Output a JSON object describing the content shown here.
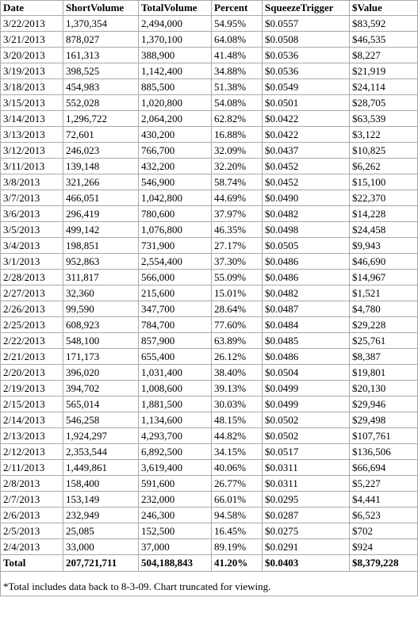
{
  "headers": [
    "Date",
    "ShortVolume",
    "TotalVolume",
    "Percent",
    "SqueezeTrigger",
    "$Value"
  ],
  "rows": [
    [
      "3/22/2013",
      "1,370,354",
      "2,494,000",
      "54.95%",
      "$0.0557",
      "$83,592"
    ],
    [
      "3/21/2013",
      "878,027",
      "1,370,100",
      "64.08%",
      "$0.0508",
      "$46,535"
    ],
    [
      "3/20/2013",
      "161,313",
      "388,900",
      "41.48%",
      "$0.0536",
      "$8,227"
    ],
    [
      "3/19/2013",
      "398,525",
      "1,142,400",
      "34.88%",
      "$0.0536",
      "$21,919"
    ],
    [
      "3/18/2013",
      "454,983",
      "885,500",
      "51.38%",
      "$0.0549",
      "$24,114"
    ],
    [
      "3/15/2013",
      "552,028",
      "1,020,800",
      "54.08%",
      "$0.0501",
      "$28,705"
    ],
    [
      "3/14/2013",
      "1,296,722",
      "2,064,200",
      "62.82%",
      "$0.0422",
      "$63,539"
    ],
    [
      "3/13/2013",
      "72,601",
      "430,200",
      "16.88%",
      "$0.0422",
      "$3,122"
    ],
    [
      "3/12/2013",
      "246,023",
      "766,700",
      "32.09%",
      "$0.0437",
      "$10,825"
    ],
    [
      "3/11/2013",
      "139,148",
      "432,200",
      "32.20%",
      "$0.0452",
      "$6,262"
    ],
    [
      "3/8/2013",
      "321,266",
      "546,900",
      "58.74%",
      "$0.0452",
      "$15,100"
    ],
    [
      "3/7/2013",
      "466,051",
      "1,042,800",
      "44.69%",
      "$0.0490",
      "$22,370"
    ],
    [
      "3/6/2013",
      "296,419",
      "780,600",
      "37.97%",
      "$0.0482",
      "$14,228"
    ],
    [
      "3/5/2013",
      "499,142",
      "1,076,800",
      "46.35%",
      "$0.0498",
      "$24,458"
    ],
    [
      "3/4/2013",
      "198,851",
      "731,900",
      "27.17%",
      "$0.0505",
      "$9,943"
    ],
    [
      "3/1/2013",
      "952,863",
      "2,554,400",
      "37.30%",
      "$0.0486",
      "$46,690"
    ],
    [
      "2/28/2013",
      "311,817",
      "566,000",
      "55.09%",
      "$0.0486",
      "$14,967"
    ],
    [
      "2/27/2013",
      "32,360",
      "215,600",
      "15.01%",
      "$0.0482",
      "$1,521"
    ],
    [
      "2/26/2013",
      "99,590",
      "347,700",
      "28.64%",
      "$0.0487",
      "$4,780"
    ],
    [
      "2/25/2013",
      "608,923",
      "784,700",
      "77.60%",
      "$0.0484",
      "$29,228"
    ],
    [
      "2/22/2013",
      "548,100",
      "857,900",
      "63.89%",
      "$0.0485",
      "$25,761"
    ],
    [
      "2/21/2013",
      "171,173",
      "655,400",
      "26.12%",
      "$0.0486",
      "$8,387"
    ],
    [
      "2/20/2013",
      "396,020",
      "1,031,400",
      "38.40%",
      "$0.0504",
      "$19,801"
    ],
    [
      "2/19/2013",
      "394,702",
      "1,008,600",
      "39.13%",
      "$0.0499",
      "$20,130"
    ],
    [
      "2/15/2013",
      "565,014",
      "1,881,500",
      "30.03%",
      "$0.0499",
      "$29,946"
    ],
    [
      "2/14/2013",
      "546,258",
      "1,134,600",
      "48.15%",
      "$0.0502",
      "$29,498"
    ],
    [
      "2/13/2013",
      "1,924,297",
      "4,293,700",
      "44.82%",
      "$0.0502",
      "$107,761"
    ],
    [
      "2/12/2013",
      "2,353,544",
      "6,892,500",
      "34.15%",
      "$0.0517",
      "$136,506"
    ],
    [
      "2/11/2013",
      "1,449,861",
      "3,619,400",
      "40.06%",
      "$0.0311",
      "$66,694"
    ],
    [
      "2/8/2013",
      "158,400",
      "591,600",
      "26.77%",
      "$0.0311",
      "$5,227"
    ],
    [
      "2/7/2013",
      "153,149",
      "232,000",
      "66.01%",
      "$0.0295",
      "$4,441"
    ],
    [
      "2/6/2013",
      "232,949",
      "246,300",
      "94.58%",
      "$0.0287",
      "$6,523"
    ],
    [
      "2/5/2013",
      "25,085",
      "152,500",
      "16.45%",
      "$0.0275",
      "$702"
    ],
    [
      "2/4/2013",
      "33,000",
      "37,000",
      "89.19%",
      "$0.0291",
      "$924"
    ]
  ],
  "total": [
    "Total",
    "207,721,711",
    "504,188,843",
    "41.20%",
    "$0.0403",
    "$8,379,228"
  ],
  "footnote": "*Total includes data back to 8-3-09. Chart truncated for viewing."
}
